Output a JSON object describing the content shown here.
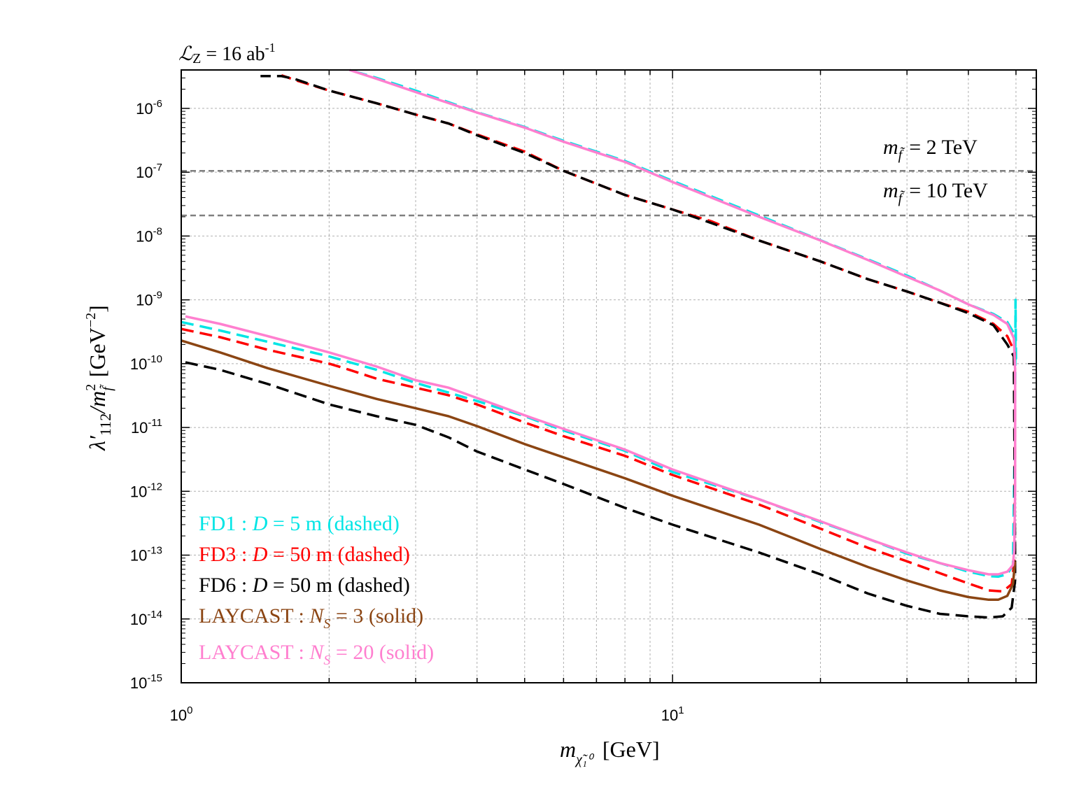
{
  "chart_data": {
    "type": "line",
    "xscale": "log",
    "yscale": "log",
    "xlim": [
      1,
      55
    ],
    "ylim": [
      1e-15,
      4e-06
    ],
    "grid": true,
    "title": "ℒZ = 16 ab-1",
    "title_parts": {
      "symbol": "ℒ",
      "sub": "Z",
      "mid": " = 16 ab",
      "sup": "-1"
    },
    "xlabel": "m_{χ̃₁⁰} [GeV]",
    "xlabel_parts": {
      "main": "m",
      "sub": "χ̃₁⁰",
      "unit": "[GeV]"
    },
    "ylabel": "λ'112/m²f̃ [GeV−2]",
    "ylabel_parts": {
      "main": "λ′",
      "sub": "112",
      "slash": "/m",
      "sup2": "2",
      "subf": "f̃",
      "unit": "[GeV",
      "unitsup": "−2",
      "close": "]"
    },
    "xticks": [
      {
        "value": 1,
        "base": "10",
        "exp": "0"
      },
      {
        "value": 10,
        "base": "10",
        "exp": "1"
      }
    ],
    "yticks": [
      {
        "value": 1e-06,
        "base": "10",
        "exp": "-6"
      },
      {
        "value": 1e-07,
        "base": "10",
        "exp": "-7"
      },
      {
        "value": 1e-08,
        "base": "10",
        "exp": "-8"
      },
      {
        "value": 1e-09,
        "base": "10",
        "exp": "-9"
      },
      {
        "value": 1e-10,
        "base": "10",
        "exp": "-10"
      },
      {
        "value": 1e-11,
        "base": "10",
        "exp": "-11"
      },
      {
        "value": 1e-12,
        "base": "10",
        "exp": "-12"
      },
      {
        "value": 1e-13,
        "base": "10",
        "exp": "-13"
      },
      {
        "value": 1e-14,
        "base": "10",
        "exp": "-14"
      },
      {
        "value": 1e-15,
        "base": "10",
        "exp": "-15"
      }
    ],
    "reference_lines": [
      {
        "y": 1.05e-07,
        "label": "m = 2 TeV",
        "parts": {
          "m": "m",
          "sub": "f̃",
          "rest": "= 2 TeV"
        },
        "color": "#808080"
      },
      {
        "y": 2.1e-08,
        "label": "m = 10 TeV",
        "parts": {
          "m": "m",
          "sub": "f̃",
          "rest": "= 10 TeV"
        },
        "color": "#808080"
      }
    ],
    "series": [
      {
        "name": "FD1 : D = 5 m (dashed)",
        "label_parts": {
          "pre": "FD1 : ",
          "it": "D",
          "post": " = 5 m (dashed)"
        },
        "color": "#00e5e5",
        "dash": "dashed",
        "points": [
          [
            1.0,
            4.5e-10
          ],
          [
            1.2,
            3.3e-10
          ],
          [
            1.5,
            2.2e-10
          ],
          [
            2.0,
            1.3e-10
          ],
          [
            2.5,
            8e-11
          ],
          [
            3.0,
            5e-11
          ],
          [
            4.0,
            2.6e-11
          ],
          [
            5.0,
            1.5e-11
          ],
          [
            6.0,
            9e-12
          ],
          [
            8.0,
            4.3e-12
          ],
          [
            10.0,
            2e-12
          ],
          [
            15.0,
            7.5e-13
          ],
          [
            20.0,
            3.3e-13
          ],
          [
            25.0,
            1.8e-13
          ],
          [
            30.0,
            1.05e-13
          ],
          [
            35.0,
            7.5e-14
          ],
          [
            40.0,
            5.5e-14
          ],
          [
            44.0,
            4.7e-14
          ],
          [
            46.0,
            4.6e-14
          ],
          [
            48.0,
            5e-14
          ],
          [
            49.3,
            7e-14
          ],
          [
            49.8,
            2e-11
          ],
          [
            49.9,
            1e-09
          ],
          [
            50.0,
            1.2e-10
          ],
          [
            49.5,
            3e-10
          ],
          [
            48.0,
            4.5e-10
          ],
          [
            45.0,
            6e-10
          ],
          [
            40.0,
            8.5e-10
          ],
          [
            35.0,
            1.4e-09
          ],
          [
            30.0,
            2.4e-09
          ],
          [
            25.0,
            4.3e-09
          ],
          [
            20.0,
            8.6e-09
          ],
          [
            15.0,
            2.1e-08
          ],
          [
            10.0,
            7.3e-08
          ],
          [
            8.0,
            1.5e-07
          ],
          [
            6.0,
            3.1e-07
          ],
          [
            5.0,
            5.1e-07
          ],
          [
            4.0,
            8.7e-07
          ],
          [
            3.0,
            1.9e-06
          ],
          [
            2.5,
            3e-06
          ],
          [
            2.2,
            4e-06
          ]
        ]
      },
      {
        "name": "FD3 : D = 50 m (dashed)",
        "label_parts": {
          "pre": "FD3 : ",
          "it": "D",
          "post": " = 50 m (dashed)"
        },
        "color": "#ff0000",
        "dash": "dashed",
        "points": [
          [
            1.0,
            3.5e-10
          ],
          [
            1.2,
            2.6e-10
          ],
          [
            1.5,
            1.65e-10
          ],
          [
            2.0,
            1e-10
          ],
          [
            2.2,
            8e-11
          ],
          [
            2.5,
            5.8e-11
          ],
          [
            3.0,
            4.2e-11
          ],
          [
            3.5,
            3.2e-11
          ],
          [
            4.0,
            2.3e-11
          ],
          [
            5.0,
            1.2e-11
          ],
          [
            6.0,
            7.3e-12
          ],
          [
            8.0,
            3.6e-12
          ],
          [
            10.0,
            1.8e-12
          ],
          [
            15.0,
            6.2e-13
          ],
          [
            20.0,
            2.6e-13
          ],
          [
            25.0,
            1.3e-13
          ],
          [
            30.0,
            8e-14
          ],
          [
            35.0,
            5.2e-14
          ],
          [
            40.0,
            3.6e-14
          ],
          [
            44.0,
            2.8e-14
          ],
          [
            47.0,
            2.7e-14
          ],
          [
            49.0,
            3.5e-14
          ],
          [
            49.6,
            8e-14
          ],
          [
            49.8,
            1e-11
          ],
          [
            49.7,
            1.5e-10
          ],
          [
            48.0,
            2.7e-10
          ],
          [
            45.0,
            4.2e-10
          ],
          [
            40.0,
            6.5e-10
          ],
          [
            35.0,
            9e-10
          ],
          [
            30.0,
            1.35e-09
          ],
          [
            25.0,
            2.1e-09
          ],
          [
            20.0,
            4e-09
          ],
          [
            15.0,
            8.5e-09
          ],
          [
            12.0,
            1.7e-08
          ],
          [
            10.0,
            2.6e-08
          ],
          [
            8.0,
            4.4e-08
          ],
          [
            6.0,
            1.05e-07
          ],
          [
            5.0,
            2.1e-07
          ],
          [
            4.0,
            3.9e-07
          ],
          [
            3.5,
            5.8e-07
          ],
          [
            3.0,
            8e-07
          ],
          [
            2.5,
            1.2e-06
          ],
          [
            2.0,
            1.9e-06
          ],
          [
            1.7,
            2.8e-06
          ],
          [
            1.6,
            3.3e-06
          ]
        ]
      },
      {
        "name": "FD6 : D = 50 m (dashed)",
        "label_parts": {
          "pre": "FD6 : ",
          "it": "D",
          "post": " = 50 m (dashed)"
        },
        "color": "#000000",
        "dash": "dashed",
        "points": [
          [
            1.02,
            1.05e-10
          ],
          [
            1.2,
            8e-11
          ],
          [
            1.5,
            4.8e-11
          ],
          [
            2.0,
            2.3e-11
          ],
          [
            2.5,
            1.5e-11
          ],
          [
            3.0,
            1.1e-11
          ],
          [
            3.5,
            7e-12
          ],
          [
            4.0,
            4.2e-12
          ],
          [
            5.0,
            2.2e-12
          ],
          [
            6.0,
            1.3e-12
          ],
          [
            8.0,
            5.5e-13
          ],
          [
            10.0,
            3e-13
          ],
          [
            15.0,
            1.1e-13
          ],
          [
            20.0,
            5e-14
          ],
          [
            25.0,
            2.5e-14
          ],
          [
            30.0,
            1.6e-14
          ],
          [
            35.0,
            1.2e-14
          ],
          [
            40.0,
            1.1e-14
          ],
          [
            44.0,
            1.05e-14
          ],
          [
            47.0,
            1.1e-14
          ],
          [
            49.0,
            1.5e-14
          ],
          [
            49.8,
            4e-14
          ],
          [
            49.8,
            1e-13
          ],
          [
            49.5,
            1.3e-10
          ],
          [
            48.0,
            2e-10
          ],
          [
            45.0,
            4e-10
          ],
          [
            40.0,
            6.2e-10
          ],
          [
            35.0,
            9e-10
          ],
          [
            30.0,
            1.35e-09
          ],
          [
            25.0,
            2.1e-09
          ],
          [
            20.0,
            4e-09
          ],
          [
            15.0,
            8.5e-09
          ],
          [
            12.0,
            1.6e-08
          ],
          [
            10.0,
            2.6e-08
          ],
          [
            8.0,
            4.4e-08
          ],
          [
            6.0,
            1.05e-07
          ],
          [
            5.0,
            2e-07
          ],
          [
            4.0,
            3.8e-07
          ],
          [
            3.5,
            5.8e-07
          ],
          [
            3.0,
            8e-07
          ],
          [
            2.5,
            1.2e-06
          ],
          [
            2.0,
            1.9e-06
          ],
          [
            1.7,
            2.9e-06
          ],
          [
            1.6,
            3.2e-06
          ],
          [
            1.45,
            3.2e-06
          ]
        ]
      },
      {
        "name": "LAYCAST : NS = 3 (solid)",
        "label_parts": {
          "pre": "LAYCAST : ",
          "it": "N",
          "sub": "S",
          "post": " = 3 (solid)"
        },
        "color": "#8b4513",
        "dash": "solid",
        "points": [
          [
            1.0,
            2.3e-10
          ],
          [
            1.2,
            1.5e-10
          ],
          [
            1.5,
            8.5e-11
          ],
          [
            2.0,
            4.5e-11
          ],
          [
            2.5,
            2.8e-11
          ],
          [
            3.0,
            2e-11
          ],
          [
            3.5,
            1.5e-11
          ],
          [
            4.0,
            1.05e-11
          ],
          [
            5.0,
            5.5e-12
          ],
          [
            6.0,
            3.4e-12
          ],
          [
            8.0,
            1.6e-12
          ],
          [
            10.0,
            8.5e-13
          ],
          [
            15.0,
            3e-13
          ],
          [
            20.0,
            1.25e-13
          ],
          [
            25.0,
            6.5e-14
          ],
          [
            30.0,
            4e-14
          ],
          [
            35.0,
            2.8e-14
          ],
          [
            40.0,
            2.2e-14
          ],
          [
            44.0,
            2e-14
          ],
          [
            46.0,
            2e-14
          ],
          [
            48.0,
            2.3e-14
          ],
          [
            49.3,
            3.5e-14
          ],
          [
            49.8,
            8e-14
          ]
        ]
      },
      {
        "name": "LAYCAST : NS = 20 (solid)",
        "label_parts": {
          "pre": "LAYCAST : ",
          "it": "N",
          "sub": "S",
          "post": " = 20 (solid)"
        },
        "color": "#ff7fcf",
        "dash": "solid",
        "points": [
          [
            1.02,
            5.5e-10
          ],
          [
            1.2,
            4.2e-10
          ],
          [
            1.5,
            2.7e-10
          ],
          [
            2.0,
            1.5e-10
          ],
          [
            2.5,
            9e-11
          ],
          [
            3.0,
            5.5e-11
          ],
          [
            3.5,
            4.2e-11
          ],
          [
            4.0,
            2.9e-11
          ],
          [
            5.0,
            1.55e-11
          ],
          [
            6.0,
            9.5e-12
          ],
          [
            8.0,
            4.5e-12
          ],
          [
            10.0,
            2.2e-12
          ],
          [
            15.0,
            7.5e-13
          ],
          [
            20.0,
            3.4e-13
          ],
          [
            25.0,
            1.8e-13
          ],
          [
            30.0,
            1.1e-13
          ],
          [
            35.0,
            7.5e-14
          ],
          [
            40.0,
            5.8e-14
          ],
          [
            44.0,
            5e-14
          ],
          [
            46.0,
            5e-14
          ],
          [
            48.0,
            5.5e-14
          ],
          [
            49.3,
            7e-14
          ],
          [
            49.6,
            1.2e-13
          ],
          [
            49.8,
            1e-12
          ],
          [
            49.8,
            8e-11
          ],
          [
            49.5,
            2.5e-10
          ],
          [
            48.0,
            4.2e-10
          ],
          [
            45.0,
            5.8e-10
          ],
          [
            40.0,
            8.5e-10
          ],
          [
            35.0,
            1.4e-09
          ],
          [
            30.0,
            2.3e-09
          ],
          [
            25.0,
            4.2e-09
          ],
          [
            20.0,
            8.5e-09
          ],
          [
            15.0,
            2e-08
          ],
          [
            12.0,
            4e-08
          ],
          [
            10.0,
            7e-08
          ],
          [
            8.0,
            1.45e-07
          ],
          [
            6.0,
            3e-07
          ],
          [
            5.0,
            5e-07
          ],
          [
            4.0,
            8.6e-07
          ],
          [
            3.0,
            1.8e-06
          ],
          [
            2.5,
            2.9e-06
          ],
          [
            2.2,
            4e-06
          ]
        ]
      }
    ]
  }
}
